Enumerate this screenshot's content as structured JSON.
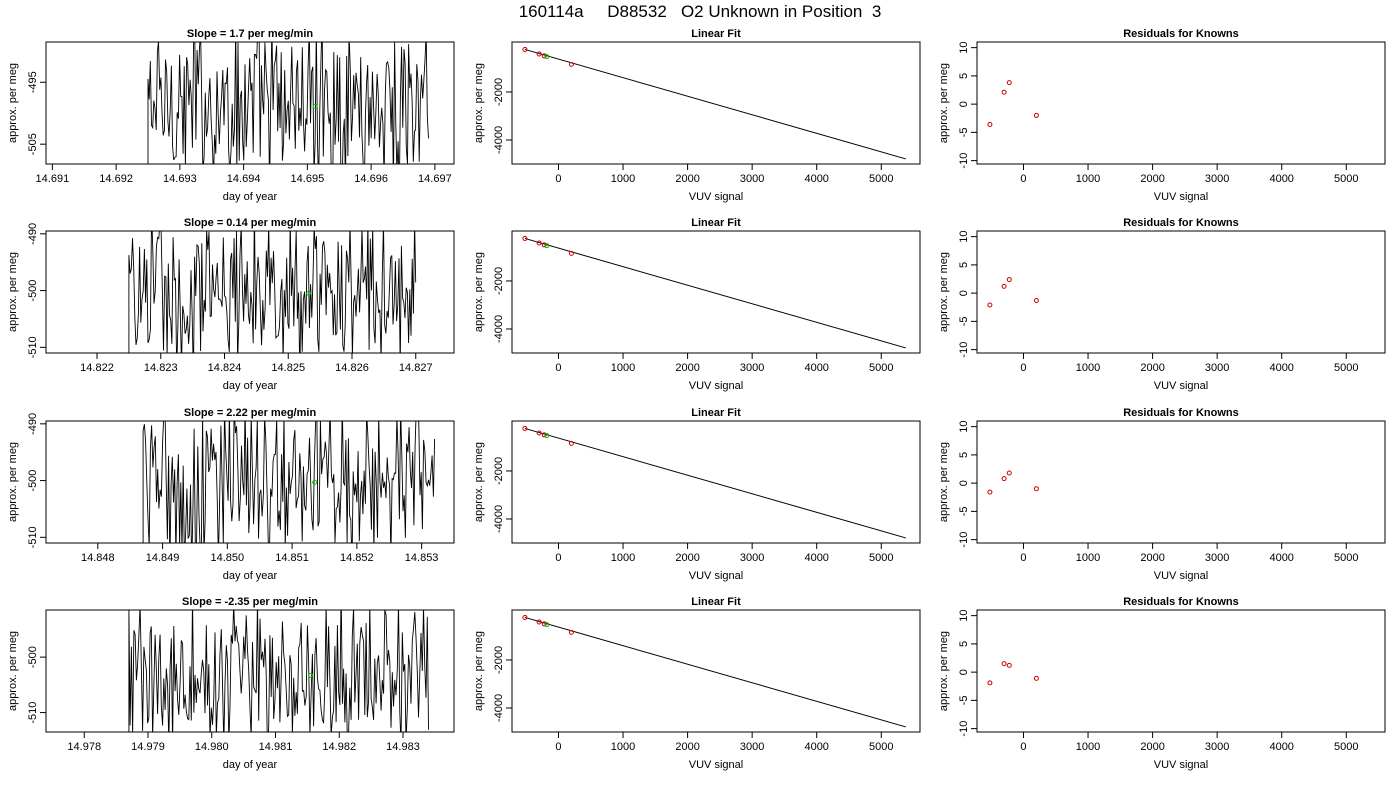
{
  "page": {
    "title": "160114a     D88532   O2 Unknown in Position  3"
  },
  "colors": {
    "trace": "#000000",
    "known_point": "#cc0000",
    "unknown_point": "#00bb00",
    "fit_line": "#000000"
  },
  "chart_data": [
    {
      "type": "line",
      "title": "Slope =  1.7  per meg/min",
      "xlabel": "day of year",
      "ylabel": "approx. per meg",
      "xlim": [
        14.6909,
        14.6973
      ],
      "ylim": [
        -508.2,
        -488.5
      ],
      "xticks": [
        14.691,
        14.692,
        14.693,
        14.694,
        14.695,
        14.696,
        14.697
      ],
      "xtick_labels": [
        "14.691",
        "14.692",
        "14.693",
        "14.694",
        "14.695",
        "14.696",
        "14.697"
      ],
      "yticks": [
        -495,
        -505
      ],
      "ytick_labels": [
        "-495",
        "-505"
      ],
      "trace_x_range": [
        14.6925,
        14.6969
      ],
      "trace_level": -498.5,
      "trace_amplitude": 11,
      "green_point": {
        "x": 14.69512,
        "y": -498.9
      }
    },
    {
      "type": "scatter",
      "title": "Linear Fit",
      "xlabel": "VUV signal",
      "ylabel": "approx. per meg",
      "xlim": [
        -720,
        5600
      ],
      "ylim": [
        -5000,
        80
      ],
      "xticks": [
        0,
        1000,
        2000,
        3000,
        4000,
        5000
      ],
      "xtick_labels": [
        "0",
        "1000",
        "2000",
        "3000",
        "4000",
        "5000"
      ],
      "yticks": [
        -2000,
        -4000
      ],
      "ytick_labels": [
        "-2000",
        "-4000"
      ],
      "known_points": [
        {
          "x": -520,
          "y": -230
        },
        {
          "x": -300,
          "y": -420
        },
        {
          "x": -220,
          "y": -500
        },
        {
          "x": 200,
          "y": -850
        }
      ],
      "unknown_point": {
        "x": -180,
        "y": -530
      },
      "fit_line": [
        {
          "x": -520,
          "y": -230
        },
        {
          "x": 5380,
          "y": -4790
        }
      ]
    },
    {
      "type": "scatter",
      "title": "Residuals for Knowns",
      "xlabel": "VUV signal",
      "ylabel": "approx. per meg",
      "xlim": [
        -720,
        5600
      ],
      "ylim": [
        -10.6,
        11
      ],
      "xticks": [
        0,
        1000,
        2000,
        3000,
        4000,
        5000
      ],
      "xtick_labels": [
        "0",
        "1000",
        "2000",
        "3000",
        "4000",
        "5000"
      ],
      "yticks": [
        -10,
        -5,
        0,
        5,
        10
      ],
      "ytick_labels": [
        "-10",
        "-5",
        "0",
        "5",
        "10"
      ],
      "points": [
        {
          "x": -520,
          "y": -3.6
        },
        {
          "x": -300,
          "y": 2.1
        },
        {
          "x": -220,
          "y": 3.8
        },
        {
          "x": 200,
          "y": -2.0
        }
      ]
    },
    {
      "type": "line",
      "title": "Slope =  0.14  per meg/min",
      "xlabel": "day of year",
      "ylabel": "approx. per meg",
      "xlim": [
        14.8212,
        14.8276
      ],
      "ylim": [
        -511,
        -489.5
      ],
      "xticks": [
        14.822,
        14.823,
        14.824,
        14.825,
        14.826,
        14.827
      ],
      "xtick_labels": [
        "14.822",
        "14.823",
        "14.824",
        "14.825",
        "14.826",
        "14.827"
      ],
      "yticks": [
        -490,
        -500,
        -510
      ],
      "ytick_labels": [
        "-490",
        "-500",
        "-510"
      ],
      "trace_x_range": [
        14.8225,
        14.827
      ],
      "trace_level": -500.5,
      "trace_amplitude": 11,
      "green_point": {
        "x": 14.82532,
        "y": -500.5
      }
    },
    {
      "type": "scatter",
      "title": "Linear Fit",
      "xlabel": "VUV signal",
      "ylabel": "approx. per meg",
      "xlim": [
        -720,
        5600
      ],
      "ylim": [
        -5000,
        80
      ],
      "xticks": [
        0,
        1000,
        2000,
        3000,
        4000,
        5000
      ],
      "xtick_labels": [
        "0",
        "1000",
        "2000",
        "3000",
        "4000",
        "5000"
      ],
      "yticks": [
        -2000,
        -4000
      ],
      "ytick_labels": [
        "-2000",
        "-4000"
      ],
      "known_points": [
        {
          "x": -520,
          "y": -230
        },
        {
          "x": -300,
          "y": -420
        },
        {
          "x": -220,
          "y": -500
        },
        {
          "x": 200,
          "y": -850
        }
      ],
      "unknown_point": {
        "x": -180,
        "y": -530
      },
      "fit_line": [
        {
          "x": -520,
          "y": -230
        },
        {
          "x": 5380,
          "y": -4790
        }
      ]
    },
    {
      "type": "scatter",
      "title": "Residuals for Knowns",
      "xlabel": "VUV signal",
      "ylabel": "approx. per meg",
      "xlim": [
        -720,
        5600
      ],
      "ylim": [
        -10.6,
        11
      ],
      "xticks": [
        0,
        1000,
        2000,
        3000,
        4000,
        5000
      ],
      "xtick_labels": [
        "0",
        "1000",
        "2000",
        "3000",
        "4000",
        "5000"
      ],
      "yticks": [
        -10,
        -5,
        0,
        5,
        10
      ],
      "ytick_labels": [
        "-10",
        "-5",
        "0",
        "5",
        "10"
      ],
      "points": [
        {
          "x": -520,
          "y": -2.1
        },
        {
          "x": -300,
          "y": 1.2
        },
        {
          "x": -220,
          "y": 2.4
        },
        {
          "x": 200,
          "y": -1.3
        }
      ]
    },
    {
      "type": "line",
      "title": "Slope =  2.22  per meg/min",
      "xlabel": "day of year",
      "ylabel": "approx. per meg",
      "xlim": [
        14.8472,
        14.8535
      ],
      "ylim": [
        -511,
        -489.5
      ],
      "xticks": [
        14.848,
        14.849,
        14.85,
        14.851,
        14.852,
        14.853
      ],
      "xtick_labels": [
        "14.848",
        "14.849",
        "14.850",
        "14.851",
        "14.852",
        "14.853"
      ],
      "yticks": [
        -490,
        -500,
        -510
      ],
      "ytick_labels": [
        "-490",
        "-500",
        "-510"
      ],
      "trace_x_range": [
        14.8487,
        14.8532
      ],
      "trace_level": -500.5,
      "trace_amplitude": 11,
      "green_point": {
        "x": 14.85135,
        "y": -500.3
      }
    },
    {
      "type": "scatter",
      "title": "Linear Fit",
      "xlabel": "VUV signal",
      "ylabel": "approx. per meg",
      "xlim": [
        -720,
        5600
      ],
      "ylim": [
        -5000,
        80
      ],
      "xticks": [
        0,
        1000,
        2000,
        3000,
        4000,
        5000
      ],
      "xtick_labels": [
        "0",
        "1000",
        "2000",
        "3000",
        "4000",
        "5000"
      ],
      "yticks": [
        -2000,
        -4000
      ],
      "ytick_labels": [
        "-2000",
        "-4000"
      ],
      "known_points": [
        {
          "x": -520,
          "y": -230
        },
        {
          "x": -300,
          "y": -420
        },
        {
          "x": -220,
          "y": -500
        },
        {
          "x": 200,
          "y": -850
        }
      ],
      "unknown_point": {
        "x": -180,
        "y": -530
      },
      "fit_line": [
        {
          "x": -520,
          "y": -230
        },
        {
          "x": 5380,
          "y": -4790
        }
      ]
    },
    {
      "type": "scatter",
      "title": "Residuals for Knowns",
      "xlabel": "VUV signal",
      "ylabel": "approx. per meg",
      "xlim": [
        -720,
        5600
      ],
      "ylim": [
        -10.6,
        11
      ],
      "xticks": [
        0,
        1000,
        2000,
        3000,
        4000,
        5000
      ],
      "xtick_labels": [
        "0",
        "1000",
        "2000",
        "3000",
        "4000",
        "5000"
      ],
      "yticks": [
        -10,
        -5,
        0,
        5,
        10
      ],
      "ytick_labels": [
        "-10",
        "-5",
        "0",
        "5",
        "10"
      ],
      "points": [
        {
          "x": -520,
          "y": -1.6
        },
        {
          "x": -300,
          "y": 0.8
        },
        {
          "x": -220,
          "y": 1.8
        },
        {
          "x": 200,
          "y": -1.0
        }
      ]
    },
    {
      "type": "line",
      "title": "Slope =  -2.35  per meg/min",
      "xlabel": "day of year",
      "ylabel": "approx. per meg",
      "xlim": [
        14.9774,
        14.9838
      ],
      "ylim": [
        -513.5,
        -491.5
      ],
      "xticks": [
        14.978,
        14.979,
        14.98,
        14.981,
        14.982,
        14.983
      ],
      "xtick_labels": [
        "14.978",
        "14.979",
        "14.980",
        "14.981",
        "14.982",
        "14.983"
      ],
      "yticks": [
        -500,
        -510
      ],
      "ytick_labels": [
        "-500",
        "-510"
      ],
      "trace_x_range": [
        14.9787,
        14.9834
      ],
      "trace_level": -503,
      "trace_amplitude": 11,
      "green_point": {
        "x": 14.98155,
        "y": -503.3
      }
    },
    {
      "type": "scatter",
      "title": "Linear Fit",
      "xlabel": "VUV signal",
      "ylabel": "approx. per meg",
      "xlim": [
        -720,
        5600
      ],
      "ylim": [
        -5000,
        80
      ],
      "xticks": [
        0,
        1000,
        2000,
        3000,
        4000,
        5000
      ],
      "xtick_labels": [
        "0",
        "1000",
        "2000",
        "3000",
        "4000",
        "5000"
      ],
      "yticks": [
        -2000,
        -4000
      ],
      "ytick_labels": [
        "-2000",
        "-4000"
      ],
      "known_points": [
        {
          "x": -520,
          "y": -230
        },
        {
          "x": -300,
          "y": -420
        },
        {
          "x": -220,
          "y": -500
        },
        {
          "x": 200,
          "y": -850
        }
      ],
      "unknown_point": {
        "x": -180,
        "y": -530
      },
      "fit_line": [
        {
          "x": -520,
          "y": -230
        },
        {
          "x": 5380,
          "y": -4790
        }
      ]
    },
    {
      "type": "scatter",
      "title": "Residuals for Knowns",
      "xlabel": "VUV signal",
      "ylabel": "approx. per meg",
      "xlim": [
        -720,
        5600
      ],
      "ylim": [
        -10.6,
        11
      ],
      "xticks": [
        0,
        1000,
        2000,
        3000,
        4000,
        5000
      ],
      "xtick_labels": [
        "0",
        "1000",
        "2000",
        "3000",
        "4000",
        "5000"
      ],
      "yticks": [
        -10,
        -5,
        0,
        5,
        10
      ],
      "ytick_labels": [
        "-10",
        "-5",
        "0",
        "5",
        "10"
      ],
      "points": [
        {
          "x": -520,
          "y": -1.9
        },
        {
          "x": -300,
          "y": 1.5
        },
        {
          "x": -220,
          "y": 1.2
        },
        {
          "x": 200,
          "y": -1.1
        }
      ]
    }
  ]
}
